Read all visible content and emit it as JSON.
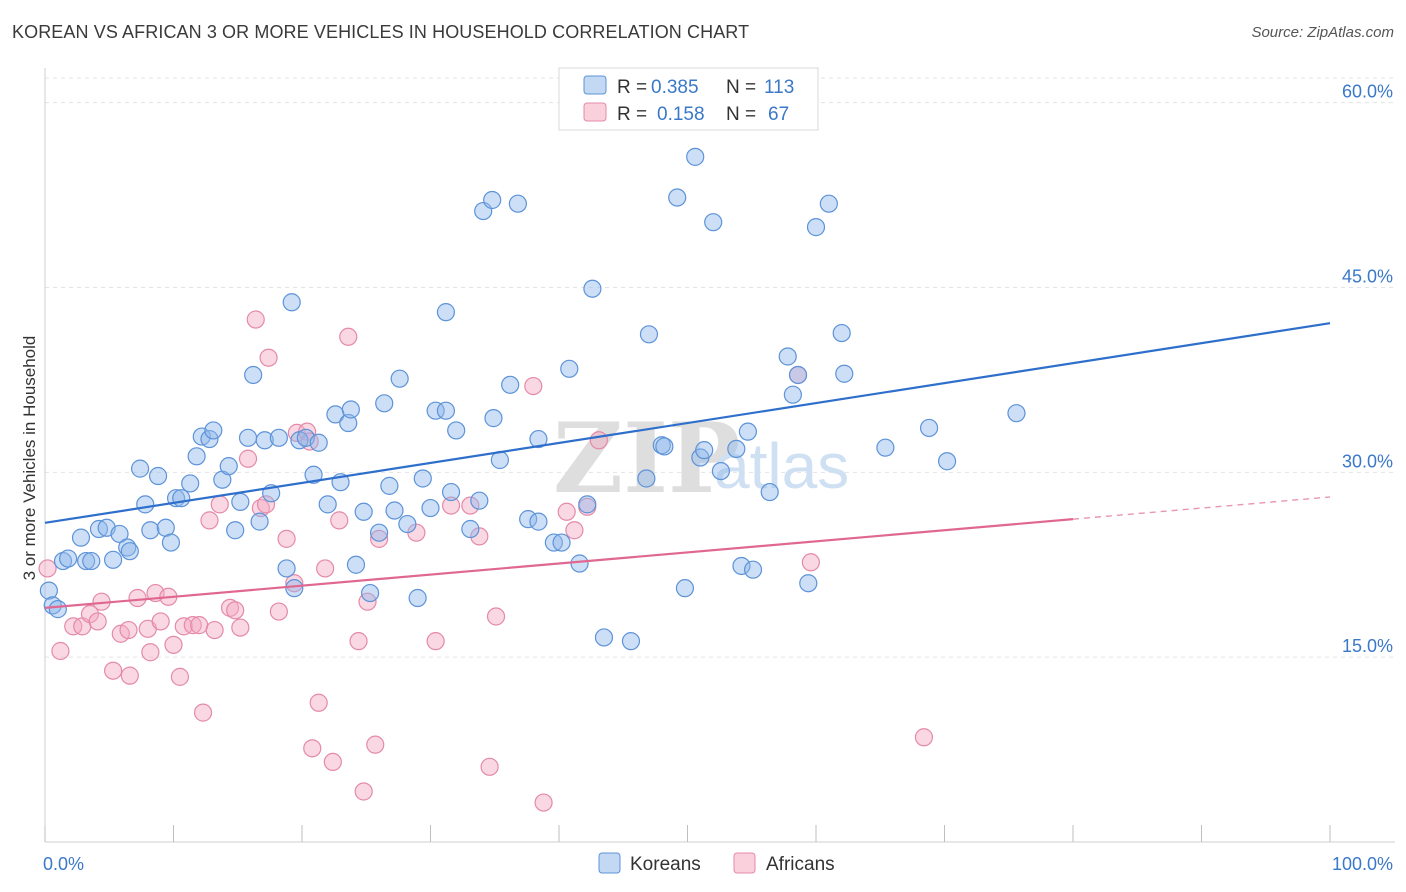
{
  "title": "KOREAN VS AFRICAN 3 OR MORE VEHICLES IN HOUSEHOLD CORRELATION CHART",
  "source": "Source: ZipAtlas.com",
  "watermark": {
    "zip": "ZIP",
    "atlas": "atlas"
  },
  "legend": {
    "r_label": "R =",
    "n_label": "N =",
    "rows": [
      {
        "r": "0.385",
        "n": "113",
        "color": "#8fb8ea"
      },
      {
        "r": "0.158",
        "n": "67",
        "color": "#f4a9c0"
      }
    ]
  },
  "bottom_legend": [
    "Koreans",
    "Africans"
  ],
  "chart_data": {
    "type": "scatter",
    "title": "KOREAN VS AFRICAN 3 OR MORE VEHICLES IN HOUSEHOLD CORRELATION CHART",
    "xlabel": "",
    "ylabel": "3 or more Vehicles in Household",
    "xlim": [
      0,
      100
    ],
    "ylim": [
      0,
      62
    ],
    "x_tick_labels": [
      "0.0%",
      "100.0%"
    ],
    "y_ticks": [
      15,
      30,
      45,
      60
    ],
    "y_tick_labels": [
      "15.0%",
      "30.0%",
      "45.0%",
      "60.0%"
    ],
    "grid": true,
    "colors": {
      "koreans": "#8fb8ea",
      "koreans_line": "#2f6fcc",
      "africans": "#f4a9c0",
      "africans_line": "#e06890"
    },
    "series": [
      {
        "name": "Koreans",
        "trend": {
          "x0": 0,
          "y0": 25.9,
          "x1": 100,
          "y1": 42.1
        },
        "points": [
          [
            0.3,
            20.4
          ],
          [
            0.6,
            19.2
          ],
          [
            1.0,
            18.9
          ],
          [
            1.4,
            22.8
          ],
          [
            1.8,
            23.0
          ],
          [
            2.8,
            24.7
          ],
          [
            3.2,
            22.8
          ],
          [
            3.6,
            22.8
          ],
          [
            4.2,
            25.4
          ],
          [
            4.8,
            25.5
          ],
          [
            5.3,
            22.9
          ],
          [
            5.8,
            25.0
          ],
          [
            6.4,
            23.9
          ],
          [
            6.6,
            23.6
          ],
          [
            7.4,
            30.3
          ],
          [
            7.8,
            27.4
          ],
          [
            8.2,
            25.3
          ],
          [
            8.8,
            29.7
          ],
          [
            9.4,
            25.5
          ],
          [
            9.8,
            24.3
          ],
          [
            10.2,
            27.9
          ],
          [
            10.6,
            27.9
          ],
          [
            11.3,
            29.1
          ],
          [
            11.8,
            31.3
          ],
          [
            12.2,
            32.9
          ],
          [
            12.8,
            32.7
          ],
          [
            13.1,
            33.4
          ],
          [
            13.8,
            29.4
          ],
          [
            14.3,
            30.5
          ],
          [
            14.8,
            25.3
          ],
          [
            15.2,
            27.6
          ],
          [
            15.8,
            32.8
          ],
          [
            16.2,
            37.9
          ],
          [
            16.7,
            26.0
          ],
          [
            17.1,
            32.6
          ],
          [
            17.6,
            28.3
          ],
          [
            18.2,
            32.8
          ],
          [
            18.8,
            22.2
          ],
          [
            19.2,
            43.8
          ],
          [
            19.4,
            20.6
          ],
          [
            19.8,
            32.6
          ],
          [
            20.3,
            32.8
          ],
          [
            20.9,
            29.8
          ],
          [
            21.3,
            32.4
          ],
          [
            22.0,
            27.4
          ],
          [
            22.6,
            34.7
          ],
          [
            23.0,
            29.2
          ],
          [
            23.6,
            34.0
          ],
          [
            23.8,
            35.1
          ],
          [
            24.2,
            22.5
          ],
          [
            24.8,
            26.8
          ],
          [
            25.3,
            20.2
          ],
          [
            26.0,
            25.1
          ],
          [
            26.4,
            35.6
          ],
          [
            26.8,
            28.9
          ],
          [
            27.2,
            26.9
          ],
          [
            27.6,
            37.6
          ],
          [
            28.2,
            25.8
          ],
          [
            29.0,
            19.8
          ],
          [
            29.4,
            29.5
          ],
          [
            30.0,
            27.1
          ],
          [
            30.4,
            35.0
          ],
          [
            31.2,
            35.0
          ],
          [
            31.6,
            28.4
          ],
          [
            32.0,
            33.4
          ],
          [
            31.2,
            43.0
          ],
          [
            33.1,
            25.4
          ],
          [
            33.8,
            27.7
          ],
          [
            34.1,
            51.2
          ],
          [
            34.8,
            52.1
          ],
          [
            34.9,
            34.4
          ],
          [
            35.4,
            31.0
          ],
          [
            36.2,
            37.1
          ],
          [
            36.8,
            51.8
          ],
          [
            37.6,
            26.2
          ],
          [
            38.4,
            26.0
          ],
          [
            38.4,
            32.7
          ],
          [
            39.6,
            24.3
          ],
          [
            40.2,
            24.3
          ],
          [
            40.8,
            38.4
          ],
          [
            41.6,
            22.6
          ],
          [
            42.2,
            27.4
          ],
          [
            42.6,
            44.9
          ],
          [
            43.5,
            16.6
          ],
          [
            45.6,
            16.3
          ],
          [
            46.8,
            29.5
          ],
          [
            47.0,
            41.2
          ],
          [
            48.0,
            32.2
          ],
          [
            48.2,
            32.1
          ],
          [
            49.2,
            52.3
          ],
          [
            49.8,
            20.6
          ],
          [
            50.6,
            55.6
          ],
          [
            51.0,
            31.2
          ],
          [
            51.3,
            31.8
          ],
          [
            52.0,
            50.3
          ],
          [
            52.6,
            30.1
          ],
          [
            53.8,
            31.9
          ],
          [
            54.2,
            22.4
          ],
          [
            54.7,
            33.3
          ],
          [
            55.1,
            22.1
          ],
          [
            56.4,
            28.4
          ],
          [
            57.8,
            39.4
          ],
          [
            58.2,
            36.3
          ],
          [
            58.6,
            37.9
          ],
          [
            59.4,
            21.0
          ],
          [
            60.0,
            49.9
          ],
          [
            61.0,
            51.8
          ],
          [
            62.0,
            41.3
          ],
          [
            62.2,
            38.0
          ],
          [
            65.4,
            32.0
          ],
          [
            68.8,
            33.6
          ],
          [
            70.2,
            30.9
          ],
          [
            75.6,
            34.8
          ]
        ]
      },
      {
        "name": "Africans",
        "trend": {
          "x0": 0,
          "y0": 19.0,
          "x1": 80,
          "y1": 26.2
        },
        "trend_dashed": {
          "x0": 80,
          "y0": 26.2,
          "x1": 100,
          "y1": 28.0
        },
        "points": [
          [
            0.2,
            22.2
          ],
          [
            1.2,
            15.5
          ],
          [
            2.2,
            17.5
          ],
          [
            2.9,
            17.5
          ],
          [
            3.5,
            18.5
          ],
          [
            4.1,
            17.9
          ],
          [
            4.4,
            19.5
          ],
          [
            5.3,
            13.9
          ],
          [
            5.9,
            16.9
          ],
          [
            6.5,
            17.2
          ],
          [
            6.6,
            13.5
          ],
          [
            7.2,
            19.8
          ],
          [
            8.0,
            17.3
          ],
          [
            8.2,
            15.4
          ],
          [
            8.6,
            20.2
          ],
          [
            9.0,
            17.9
          ],
          [
            9.6,
            19.9
          ],
          [
            10.0,
            16.0
          ],
          [
            10.5,
            13.4
          ],
          [
            10.8,
            17.5
          ],
          [
            11.5,
            17.6
          ],
          [
            12.0,
            17.6
          ],
          [
            12.3,
            10.5
          ],
          [
            12.8,
            26.1
          ],
          [
            13.2,
            17.2
          ],
          [
            13.6,
            27.4
          ],
          [
            14.4,
            19.0
          ],
          [
            14.8,
            18.8
          ],
          [
            15.2,
            17.4
          ],
          [
            15.8,
            31.1
          ],
          [
            16.4,
            42.4
          ],
          [
            16.8,
            27.1
          ],
          [
            17.2,
            27.4
          ],
          [
            17.4,
            39.3
          ],
          [
            18.2,
            18.7
          ],
          [
            18.8,
            24.6
          ],
          [
            19.4,
            21.0
          ],
          [
            19.6,
            33.2
          ],
          [
            20.4,
            33.3
          ],
          [
            20.6,
            32.5
          ],
          [
            20.8,
            7.6
          ],
          [
            21.3,
            11.3
          ],
          [
            21.8,
            22.2
          ],
          [
            22.4,
            6.5
          ],
          [
            22.9,
            26.1
          ],
          [
            23.6,
            41.0
          ],
          [
            24.4,
            16.3
          ],
          [
            24.8,
            4.1
          ],
          [
            25.1,
            19.5
          ],
          [
            25.7,
            7.9
          ],
          [
            26.0,
            24.6
          ],
          [
            28.9,
            25.1
          ],
          [
            30.4,
            16.3
          ],
          [
            31.6,
            27.3
          ],
          [
            33.1,
            27.3
          ],
          [
            33.8,
            24.8
          ],
          [
            34.6,
            6.1
          ],
          [
            35.1,
            18.3
          ],
          [
            38.0,
            37.0
          ],
          [
            38.8,
            3.2
          ],
          [
            40.6,
            26.8
          ],
          [
            41.2,
            25.3
          ],
          [
            42.2,
            27.2
          ],
          [
            43.1,
            32.6
          ],
          [
            58.6,
            37.9
          ],
          [
            59.6,
            22.7
          ],
          [
            68.4,
            8.5
          ]
        ]
      }
    ]
  }
}
